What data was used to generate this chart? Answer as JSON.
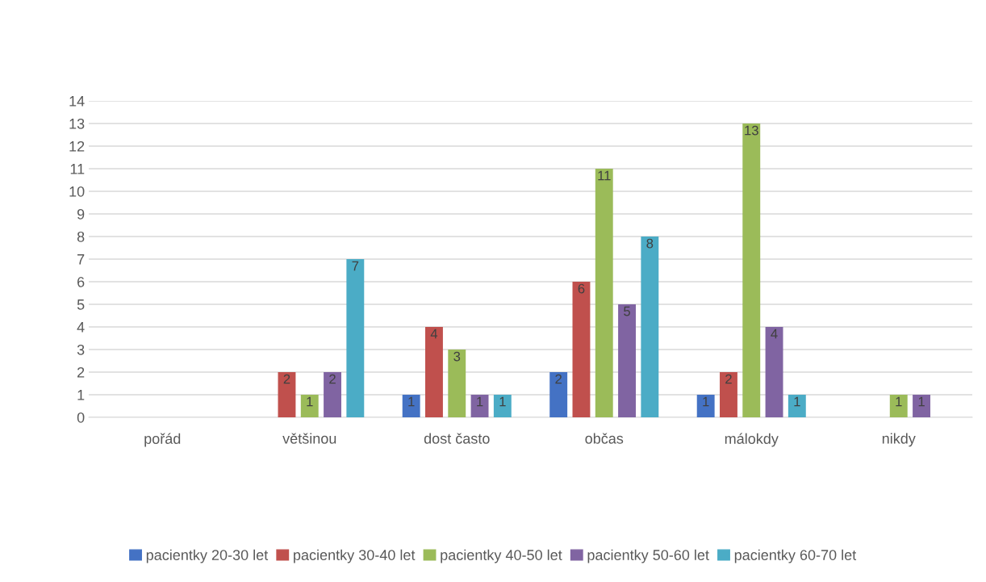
{
  "chart_data": {
    "type": "bar",
    "categories": [
      "pořád",
      "většinou",
      "dost často",
      "občas",
      "málokdy",
      "nikdy"
    ],
    "series": [
      {
        "name": "pacientky 20-30 let",
        "color": "#4472c4",
        "values": [
          0,
          0,
          1,
          2,
          1,
          0
        ],
        "value_labels": [
          null,
          null,
          "1",
          "2",
          "1",
          null
        ]
      },
      {
        "name": "pacientky 30-40 let",
        "color": "#c0504d",
        "values": [
          0,
          2,
          4,
          6,
          2,
          0
        ],
        "value_labels": [
          null,
          "2",
          "4",
          "6",
          "2",
          null
        ]
      },
      {
        "name": "pacientky 40-50 let",
        "color": "#9bbb59",
        "values": [
          0,
          1,
          3,
          11,
          13,
          1
        ],
        "value_labels": [
          null,
          "1",
          "3",
          "11",
          "13",
          "1"
        ]
      },
      {
        "name": "pacientky 50-60 let",
        "color": "#8064a2",
        "values": [
          0,
          2,
          1,
          5,
          4,
          1
        ],
        "value_labels": [
          null,
          "2",
          "1",
          "5",
          "4",
          "1"
        ]
      },
      {
        "name": "pacientky 60-70 let",
        "color": "#4bacc6",
        "values": [
          0,
          7,
          1,
          8,
          1,
          0
        ],
        "value_labels": [
          null,
          "7",
          "1",
          "8",
          "1",
          null
        ]
      }
    ],
    "ylim": [
      0,
      14
    ],
    "yticks": [
      0,
      1,
      2,
      3,
      4,
      5,
      6,
      7,
      8,
      9,
      10,
      11,
      12,
      13,
      14
    ],
    "grid": "y",
    "legend": "bottom"
  }
}
